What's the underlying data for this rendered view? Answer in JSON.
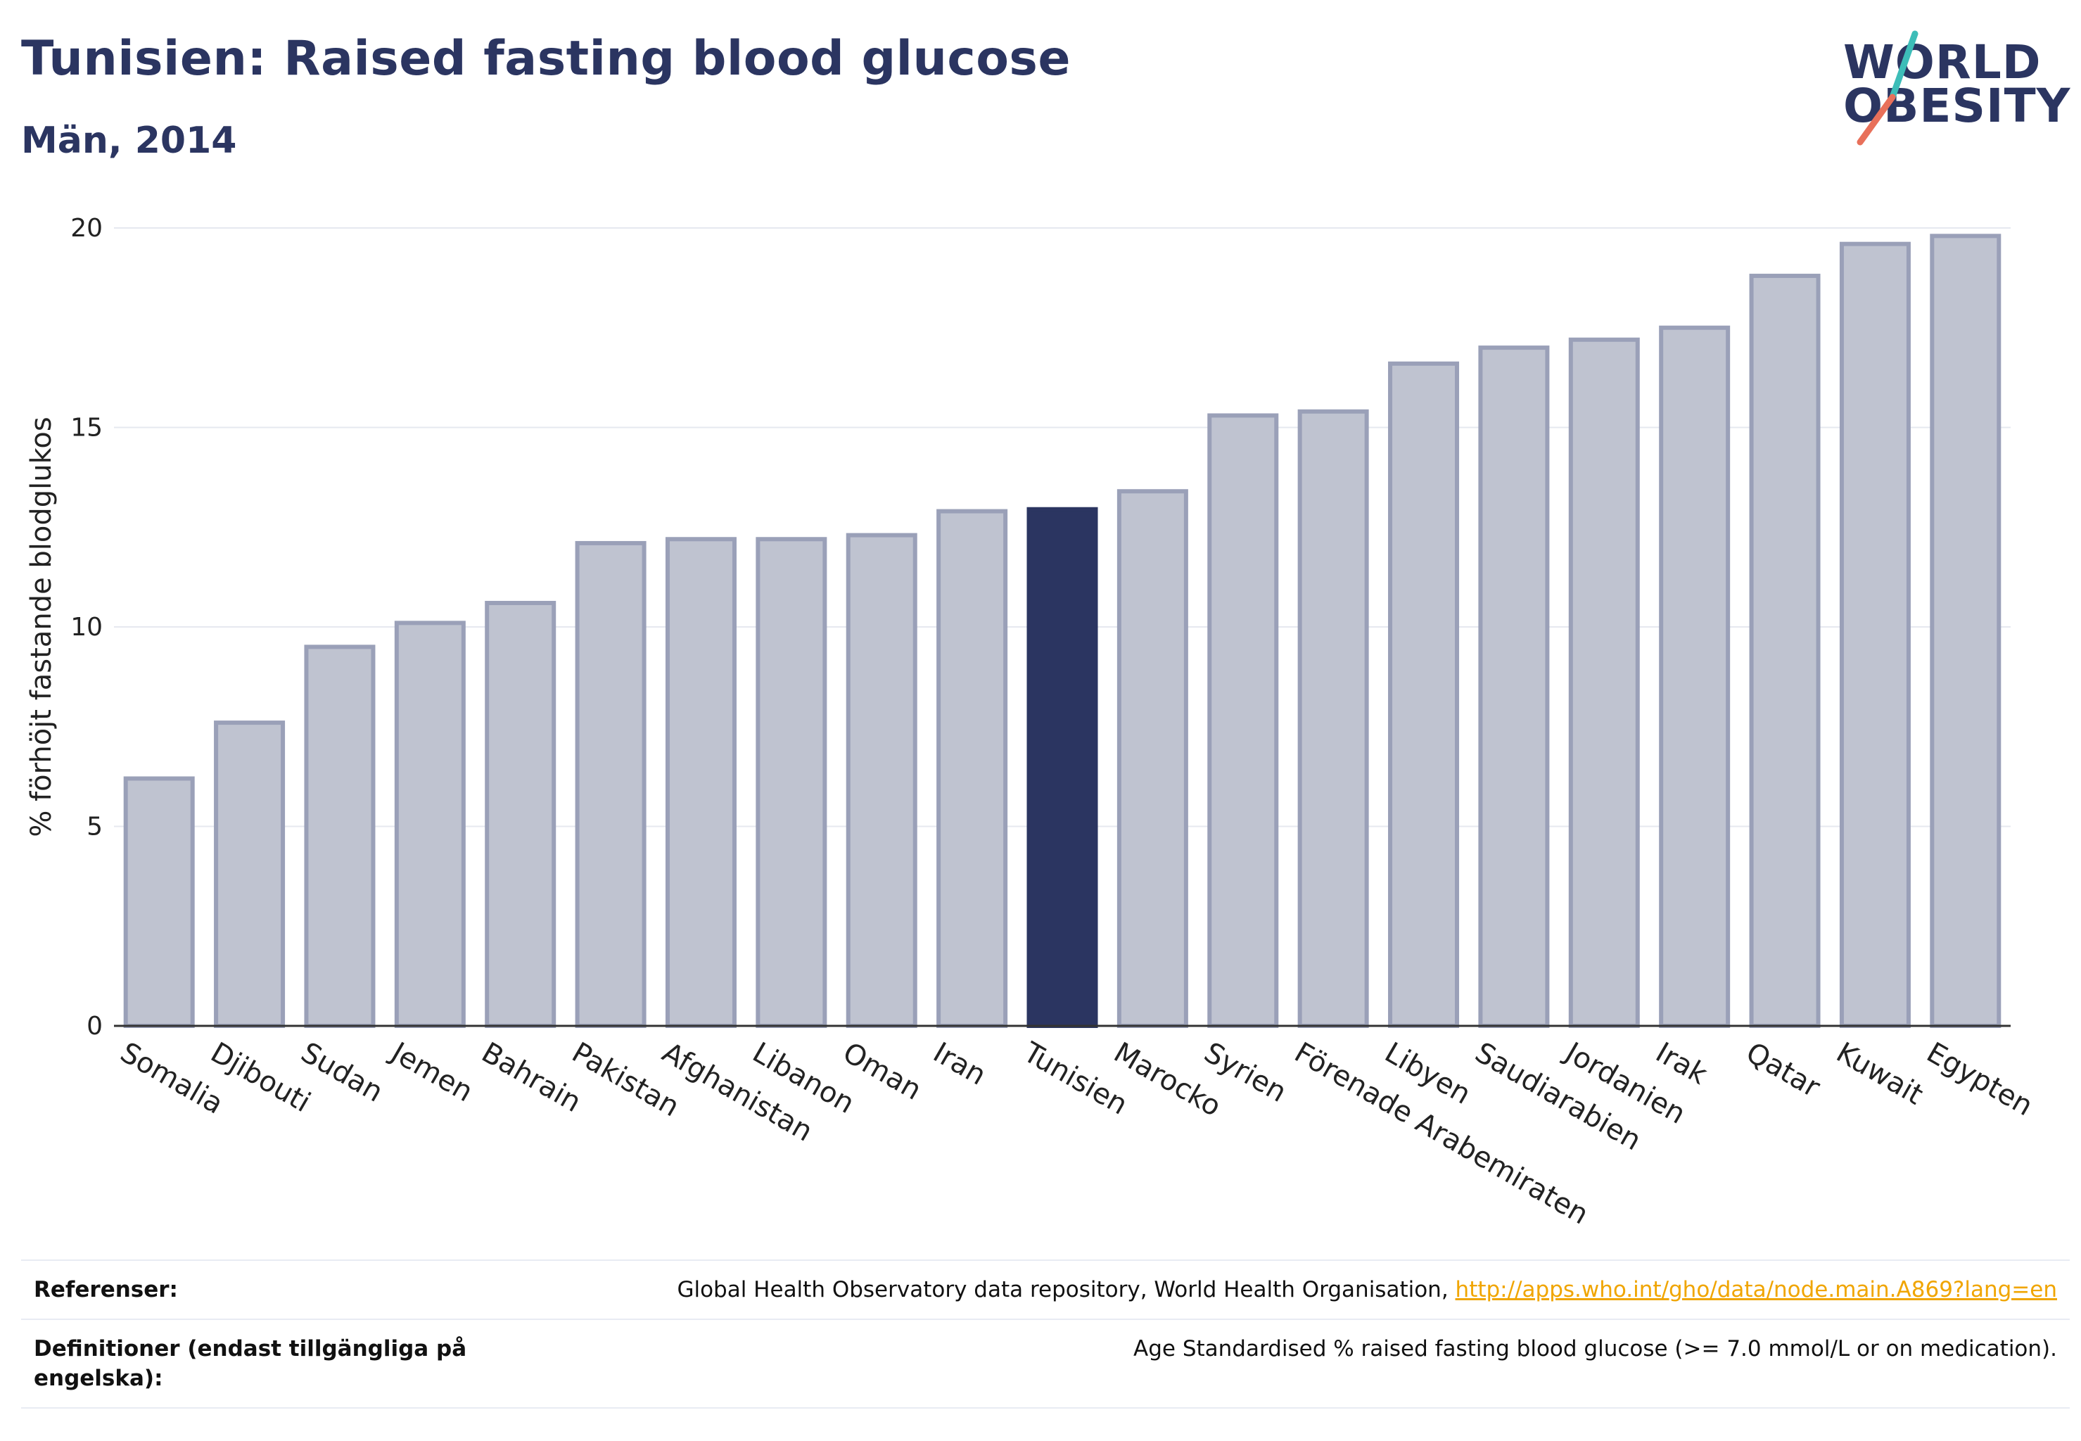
{
  "header": {
    "title": "Tunisien: Raised fasting blood glucose",
    "subtitle": "Män, 2014"
  },
  "logo": {
    "line1": "WORLD",
    "line2": "OBESITY",
    "colors": {
      "text": "#2b3561",
      "teal": "#3dbdb8",
      "coral": "#e8705a"
    }
  },
  "chart_data": {
    "type": "bar",
    "ylabel": "% förhöjt fastande blodglukos",
    "xlabel": "",
    "ylim": [
      0,
      20
    ],
    "yticks": [
      0,
      5,
      10,
      15,
      20
    ],
    "grid": true,
    "highlight": "Tunisien",
    "colors": {
      "bar": "#bfc3d0",
      "bar_edge": "#9aa0b8",
      "highlight": "#2b3561"
    },
    "categories": [
      "Somalia",
      "Djibouti",
      "Sudan",
      "Jemen",
      "Bahrain",
      "Pakistan",
      "Afghanistan",
      "Libanon",
      "Oman",
      "Iran",
      "Tunisien",
      "Marocko",
      "Syrien",
      "Förenade Arabemiraten",
      "Libyen",
      "Saudiarabien",
      "Jordanien",
      "Irak",
      "Qatar",
      "Kuwait",
      "Egypten"
    ],
    "values": [
      6.2,
      7.6,
      9.5,
      10.1,
      10.6,
      12.1,
      12.2,
      12.2,
      12.3,
      12.9,
      12.95,
      13.4,
      15.3,
      15.4,
      16.6,
      17.0,
      17.2,
      17.5,
      18.8,
      19.6,
      19.8
    ]
  },
  "footer": {
    "references_label": "Referenser:",
    "references_text": "Global Health Observatory data repository, World Health Organisation, ",
    "references_link": "http://apps.who.int/gho/data/node.main.A869?lang=en",
    "definitions_label": "Definitioner (endast tillgängliga på engelska):",
    "definitions_text": "Age Standardised % raised fasting blood glucose (>= 7.0 mmol/L or on medication)."
  }
}
